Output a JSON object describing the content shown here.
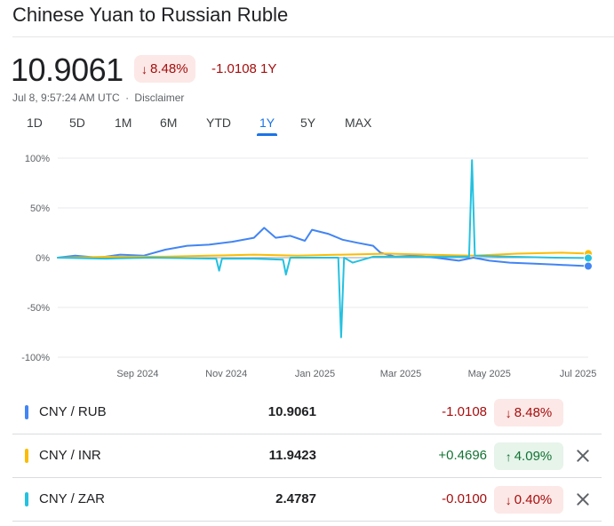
{
  "header": {
    "title": "Chinese Yuan to Russian Ruble",
    "price": "10.9061",
    "change_pct": "8.48%",
    "change_abs": "-1.0108 1Y",
    "timestamp": "Jul 8, 9:57:24 AM UTC",
    "separator": "·",
    "disclaimer": "Disclaimer"
  },
  "tabs": [
    {
      "label": "1D",
      "active": false
    },
    {
      "label": "5D",
      "active": false
    },
    {
      "label": "1M",
      "active": false
    },
    {
      "label": "6M",
      "active": false
    },
    {
      "label": "YTD",
      "active": false
    },
    {
      "label": "1Y",
      "active": true
    },
    {
      "label": "5Y",
      "active": false
    },
    {
      "label": "MAX",
      "active": false
    }
  ],
  "colors": {
    "rub": "#4285f4",
    "inr": "#fbbc04",
    "zar": "#24c1e0",
    "negative": "#a50e0e",
    "positive": "#137333",
    "accent": "#1a73e8"
  },
  "chart_data": {
    "type": "line",
    "ylim": [
      -100,
      100
    ],
    "y_ticks": [
      {
        "value": 100,
        "label": "100%"
      },
      {
        "value": 50,
        "label": "50%"
      },
      {
        "value": 0,
        "label": "0%"
      },
      {
        "value": -50,
        "label": "-50%"
      },
      {
        "value": -100,
        "label": "-100%"
      }
    ],
    "x_range": [
      "2024-07-08",
      "2025-07-08"
    ],
    "x_ticks": [
      {
        "date": "2024-09-01",
        "label": "Sep 2024"
      },
      {
        "date": "2024-11-01",
        "label": "Nov 2024"
      },
      {
        "date": "2025-01-01",
        "label": "Jan 2025"
      },
      {
        "date": "2025-03-01",
        "label": "Mar 2025"
      },
      {
        "date": "2025-05-01",
        "label": "May 2025"
      },
      {
        "date": "2025-07-01",
        "label": "Jul 2025"
      }
    ],
    "series": [
      {
        "name": "CNY / RUB",
        "color": "#4285f4",
        "points": [
          [
            "2024-07-08",
            0
          ],
          [
            "2024-07-20",
            2
          ],
          [
            "2024-08-05",
            0
          ],
          [
            "2024-08-20",
            3
          ],
          [
            "2024-09-05",
            2
          ],
          [
            "2024-09-20",
            8
          ],
          [
            "2024-10-05",
            12
          ],
          [
            "2024-10-20",
            13
          ],
          [
            "2024-11-05",
            16
          ],
          [
            "2024-11-20",
            20
          ],
          [
            "2024-11-27",
            30
          ],
          [
            "2024-12-05",
            20
          ],
          [
            "2024-12-15",
            22
          ],
          [
            "2024-12-25",
            17
          ],
          [
            "2024-12-30",
            28
          ],
          [
            "2025-01-10",
            24
          ],
          [
            "2025-01-20",
            18
          ],
          [
            "2025-01-30",
            15
          ],
          [
            "2025-02-10",
            12
          ],
          [
            "2025-02-15",
            5
          ],
          [
            "2025-02-25",
            1
          ],
          [
            "2025-03-10",
            2
          ],
          [
            "2025-03-25",
            0
          ],
          [
            "2025-04-10",
            -3
          ],
          [
            "2025-04-20",
            0
          ],
          [
            "2025-05-01",
            -3
          ],
          [
            "2025-05-15",
            -5
          ],
          [
            "2025-06-01",
            -6
          ],
          [
            "2025-06-15",
            -7
          ],
          [
            "2025-07-08",
            -8.48
          ]
        ]
      },
      {
        "name": "CNY / INR",
        "color": "#fbbc04",
        "points": [
          [
            "2024-07-08",
            0
          ],
          [
            "2024-08-15",
            1
          ],
          [
            "2024-09-20",
            1
          ],
          [
            "2024-10-20",
            2
          ],
          [
            "2024-11-20",
            3
          ],
          [
            "2024-12-20",
            2
          ],
          [
            "2025-01-20",
            3
          ],
          [
            "2025-02-20",
            4
          ],
          [
            "2025-03-20",
            3
          ],
          [
            "2025-04-20",
            2
          ],
          [
            "2025-05-20",
            4
          ],
          [
            "2025-06-20",
            5
          ],
          [
            "2025-07-08",
            4.09
          ]
        ]
      },
      {
        "name": "CNY / ZAR",
        "color": "#24c1e0",
        "points": [
          [
            "2024-07-08",
            0
          ],
          [
            "2024-08-10",
            -1
          ],
          [
            "2024-09-10",
            0
          ],
          [
            "2024-10-25",
            -1
          ],
          [
            "2024-10-27",
            -13
          ],
          [
            "2024-10-29",
            -1
          ],
          [
            "2024-11-20",
            -1
          ],
          [
            "2024-12-10",
            -2
          ],
          [
            "2024-12-12",
            -17
          ],
          [
            "2024-12-15",
            0
          ],
          [
            "2025-01-10",
            0
          ],
          [
            "2025-01-17",
            0
          ],
          [
            "2025-01-19",
            -80
          ],
          [
            "2025-01-21",
            0
          ],
          [
            "2025-01-27",
            -5
          ],
          [
            "2025-02-10",
            1
          ],
          [
            "2025-03-10",
            1
          ],
          [
            "2025-04-10",
            1
          ],
          [
            "2025-04-17",
            1
          ],
          [
            "2025-04-19",
            98
          ],
          [
            "2025-04-21",
            2
          ],
          [
            "2025-05-15",
            1
          ],
          [
            "2025-06-15",
            0
          ],
          [
            "2025-07-08",
            -0.4
          ]
        ]
      }
    ]
  },
  "rows": [
    {
      "pair": "CNY / RUB",
      "color": "#4285f4",
      "value": "10.9061",
      "delta": "-1.0108",
      "pct": "8.48%",
      "direction": "down",
      "removable": false
    },
    {
      "pair": "CNY / INR",
      "color": "#fbbc04",
      "value": "11.9423",
      "delta": "+0.4696",
      "pct": "4.09%",
      "direction": "up",
      "removable": true
    },
    {
      "pair": "CNY / ZAR",
      "color": "#24c1e0",
      "value": "2.4787",
      "delta": "-0.0100",
      "pct": "0.40%",
      "direction": "down",
      "removable": true
    }
  ]
}
